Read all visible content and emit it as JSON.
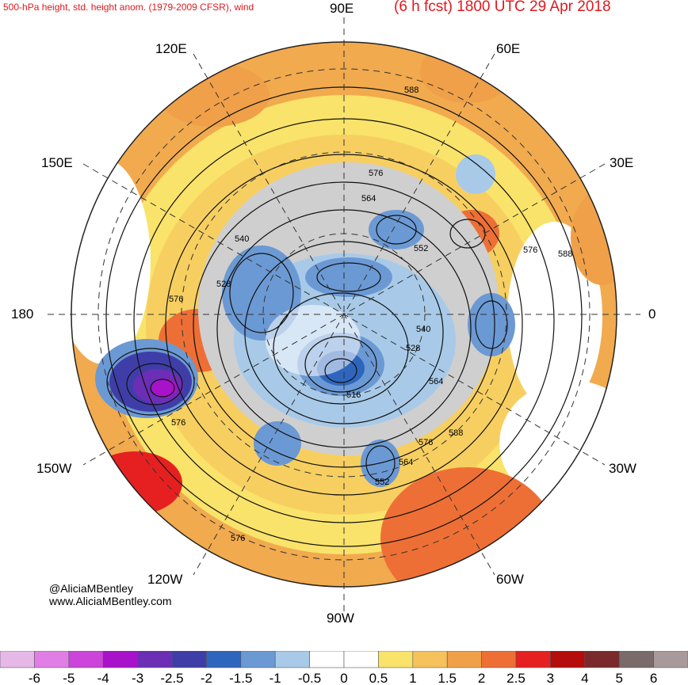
{
  "title": {
    "left": "500-hPa height, std. height anom. (1979-2009 CFSR), wind",
    "right": "(6 h fcst) 1800 UTC 29 Apr 2018"
  },
  "longitude_labels": {
    "e90": "90E",
    "e120": "120E",
    "e60": "60E",
    "e150": "150E",
    "e30": "30E",
    "w180": "180",
    "zero": "0",
    "w150": "150W",
    "w30": "30W",
    "w120": "120W",
    "w60": "60W",
    "w90": "90W"
  },
  "credit": {
    "handle": "@AliciaMBentley",
    "site": "www.AliciaMBentley.com"
  },
  "contour_labels": [
    "588",
    "576",
    "564",
    "540",
    "552",
    "528",
    "576",
    "576",
    "576",
    "540",
    "528",
    "516",
    "564",
    "576",
    "588",
    "564",
    "552",
    "588",
    "576"
  ],
  "colorbar": {
    "colors": [
      "#e6b8e8",
      "#e07ee6",
      "#cc44d9",
      "#a812c9",
      "#6b2eb4",
      "#3f3ea8",
      "#2f66bd",
      "#6b99d4",
      "#a8cae8",
      "#ffffff",
      "#ffffff",
      "#f9e36a",
      "#f5c25b",
      "#f0a048",
      "#ee6f35",
      "#e62020",
      "#b50c0c",
      "#7a2a2a",
      "#7a6a6a",
      "#a89a9a"
    ],
    "tick_labels": [
      "-6",
      "-5",
      "-4",
      "-3",
      "-2.5",
      "-2",
      "-1.5",
      "-1",
      "-0.5",
      "0",
      "0.5",
      "1",
      "1.5",
      "2",
      "2.5",
      "3",
      "4",
      "5",
      "6"
    ]
  }
}
